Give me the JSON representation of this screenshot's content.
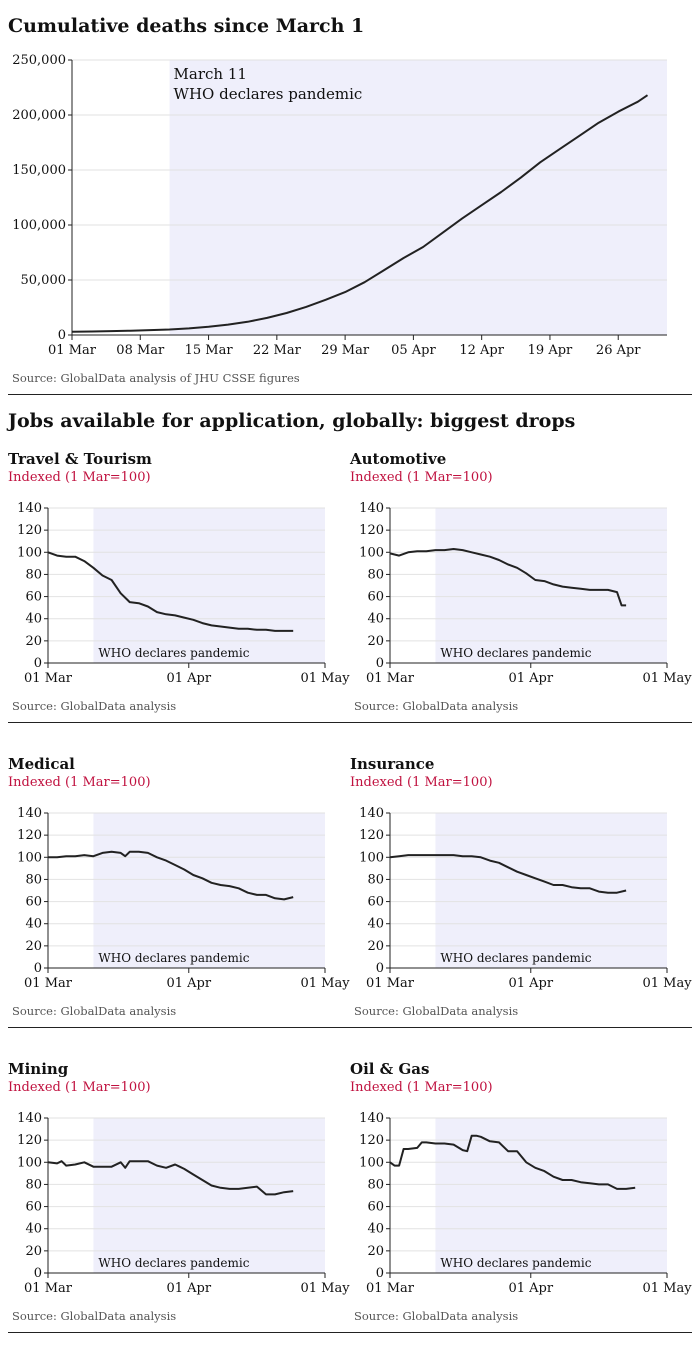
{
  "main_title": "Cumulative deaths since March 1",
  "main_source": "Source: GlobalData analysis of JHU CSSE figures",
  "jobs_title": "Jobs available for application, globally: biggest drops",
  "colors": {
    "shade": "#efeffb",
    "line": "#222222",
    "grid": "#e2e2e2",
    "caption": "#c0113f"
  },
  "chart_data": [
    {
      "type": "line",
      "title": "Cumulative deaths since March 1",
      "source": "Source: GlobalData analysis of JHU CSSE figures",
      "xlim": [
        0,
        61
      ],
      "ylim": [
        0,
        250000
      ],
      "grid": true,
      "x_ticks": [
        {
          "x": 0,
          "label": "01 Mar"
        },
        {
          "x": 7,
          "label": "08 Mar"
        },
        {
          "x": 14,
          "label": "15 Mar"
        },
        {
          "x": 21,
          "label": "22 Mar"
        },
        {
          "x": 28,
          "label": "29 Mar"
        },
        {
          "x": 35,
          "label": "05 Apr"
        },
        {
          "x": 42,
          "label": "12 Apr"
        },
        {
          "x": 49,
          "label": "19 Apr"
        },
        {
          "x": 56,
          "label": "26 Apr"
        }
      ],
      "y_ticks": [
        {
          "y": 0,
          "label": "0"
        },
        {
          "y": 50000,
          "label": "50,000"
        },
        {
          "y": 100000,
          "label": "100,000"
        },
        {
          "y": 150000,
          "label": "150,000"
        },
        {
          "y": 200000,
          "label": "200,000"
        },
        {
          "y": 250000,
          "label": "250,000"
        }
      ],
      "shade_from": 10,
      "annotation": {
        "line1": "March 11",
        "line2": "WHO declares pandemic"
      },
      "x": [
        0,
        2,
        4,
        6,
        8,
        10,
        12,
        14,
        16,
        18,
        20,
        22,
        24,
        26,
        28,
        30,
        32,
        34,
        36,
        38,
        40,
        42,
        44,
        46,
        48,
        50,
        52,
        54,
        56,
        58,
        59
      ],
      "values": [
        3000,
        3200,
        3500,
        3900,
        4500,
        5000,
        6000,
        7500,
        9500,
        12000,
        15500,
        20000,
        25500,
        32000,
        39000,
        48000,
        59000,
        70000,
        80000,
        93000,
        106000,
        118000,
        130000,
        143000,
        157000,
        169000,
        181000,
        193000,
        203000,
        212000,
        218000
      ]
    },
    {
      "type": "line",
      "title": "Travel & Tourism",
      "caption": "Indexed (1 Mar=100)",
      "source": "Source: GlobalData analysis",
      "ylim": [
        0,
        140
      ],
      "xlim": [
        0,
        61
      ],
      "shade_from": 10,
      "annotation": "WHO declares pandemic",
      "x_ticks": [
        {
          "x": 0,
          "label": "01 Mar"
        },
        {
          "x": 31,
          "label": "01 Apr"
        },
        {
          "x": 61,
          "label": "01 May"
        }
      ],
      "y_ticks": [
        {
          "y": 0,
          "label": "0"
        },
        {
          "y": 20,
          "label": "20"
        },
        {
          "y": 40,
          "label": "40"
        },
        {
          "y": 60,
          "label": "60"
        },
        {
          "y": 80,
          "label": "80"
        },
        {
          "y": 100,
          "label": "100"
        },
        {
          "y": 120,
          "label": "120"
        },
        {
          "y": 140,
          "label": "140"
        }
      ],
      "x": [
        0,
        2,
        4,
        6,
        8,
        10,
        12,
        14,
        16,
        18,
        20,
        22,
        24,
        26,
        28,
        30,
        32,
        34,
        36,
        38,
        40,
        42,
        44,
        46,
        48,
        50,
        52,
        54
      ],
      "values": [
        100,
        97,
        96,
        96,
        92,
        86,
        79,
        75,
        63,
        55,
        54,
        51,
        46,
        44,
        43,
        41,
        39,
        36,
        34,
        33,
        32,
        31,
        31,
        30,
        30,
        29,
        29,
        29
      ]
    },
    {
      "type": "line",
      "title": "Automotive",
      "caption": "Indexed (1 Mar=100)",
      "source": "Source: GlobalData analysis",
      "ylim": [
        0,
        140
      ],
      "xlim": [
        0,
        61
      ],
      "shade_from": 10,
      "annotation": "WHO declares pandemic",
      "x_ticks": [
        {
          "x": 0,
          "label": "01 Mar"
        },
        {
          "x": 31,
          "label": "01 Apr"
        },
        {
          "x": 61,
          "label": "01 May"
        }
      ],
      "y_ticks": [
        {
          "y": 0,
          "label": "0"
        },
        {
          "y": 20,
          "label": "20"
        },
        {
          "y": 40,
          "label": "40"
        },
        {
          "y": 60,
          "label": "60"
        },
        {
          "y": 80,
          "label": "80"
        },
        {
          "y": 100,
          "label": "100"
        },
        {
          "y": 120,
          "label": "120"
        },
        {
          "y": 140,
          "label": "140"
        }
      ],
      "x": [
        0,
        2,
        4,
        6,
        8,
        10,
        12,
        14,
        16,
        18,
        20,
        22,
        24,
        26,
        28,
        30,
        32,
        34,
        36,
        38,
        40,
        42,
        44,
        46,
        48,
        50,
        51,
        52
      ],
      "values": [
        99,
        97,
        100,
        101,
        101,
        102,
        102,
        103,
        102,
        100,
        98,
        96,
        93,
        89,
        86,
        81,
        75,
        74,
        71,
        69,
        68,
        67,
        66,
        66,
        66,
        64,
        52,
        52
      ]
    },
    {
      "type": "line",
      "title": "Medical",
      "caption": "Indexed (1 Mar=100)",
      "source": "Source: GlobalData analysis",
      "ylim": [
        0,
        140
      ],
      "xlim": [
        0,
        61
      ],
      "shade_from": 10,
      "annotation": "WHO declares pandemic",
      "x_ticks": [
        {
          "x": 0,
          "label": "01 Mar"
        },
        {
          "x": 31,
          "label": "01 Apr"
        },
        {
          "x": 61,
          "label": "01 May"
        }
      ],
      "y_ticks": [
        {
          "y": 0,
          "label": "0"
        },
        {
          "y": 20,
          "label": "20"
        },
        {
          "y": 40,
          "label": "40"
        },
        {
          "y": 60,
          "label": "60"
        },
        {
          "y": 80,
          "label": "80"
        },
        {
          "y": 100,
          "label": "100"
        },
        {
          "y": 120,
          "label": "120"
        },
        {
          "y": 140,
          "label": "140"
        }
      ],
      "x": [
        0,
        2,
        4,
        6,
        8,
        10,
        12,
        14,
        16,
        17,
        18,
        20,
        22,
        24,
        26,
        28,
        30,
        32,
        34,
        36,
        38,
        40,
        42,
        44,
        46,
        48,
        50,
        52,
        54
      ],
      "values": [
        100,
        100,
        101,
        101,
        102,
        101,
        104,
        105,
        104,
        101,
        105,
        105,
        104,
        100,
        97,
        93,
        89,
        84,
        81,
        77,
        75,
        74,
        72,
        68,
        66,
        66,
        63,
        62,
        64
      ]
    },
    {
      "type": "line",
      "title": "Insurance",
      "caption": "Indexed (1 Mar=100)",
      "source": "Source: GlobalData analysis",
      "ylim": [
        0,
        140
      ],
      "xlim": [
        0,
        61
      ],
      "shade_from": 10,
      "annotation": "WHO declares pandemic",
      "x_ticks": [
        {
          "x": 0,
          "label": "01 Mar"
        },
        {
          "x": 31,
          "label": "01 Apr"
        },
        {
          "x": 61,
          "label": "01 May"
        }
      ],
      "y_ticks": [
        {
          "y": 0,
          "label": "0"
        },
        {
          "y": 20,
          "label": "20"
        },
        {
          "y": 40,
          "label": "40"
        },
        {
          "y": 60,
          "label": "60"
        },
        {
          "y": 80,
          "label": "80"
        },
        {
          "y": 100,
          "label": "100"
        },
        {
          "y": 120,
          "label": "120"
        },
        {
          "y": 140,
          "label": "140"
        }
      ],
      "x": [
        0,
        2,
        4,
        6,
        8,
        10,
        12,
        14,
        16,
        18,
        20,
        22,
        24,
        26,
        28,
        30,
        32,
        34,
        36,
        38,
        40,
        42,
        44,
        46,
        48,
        50,
        52
      ],
      "values": [
        100,
        101,
        102,
        102,
        102,
        102,
        102,
        102,
        101,
        101,
        100,
        97,
        95,
        91,
        87,
        84,
        81,
        78,
        75,
        75,
        73,
        72,
        72,
        69,
        68,
        68,
        70
      ]
    },
    {
      "type": "line",
      "title": "Mining",
      "caption": "Indexed (1 Mar=100)",
      "source": "Source: GlobalData analysis",
      "ylim": [
        0,
        140
      ],
      "xlim": [
        0,
        61
      ],
      "shade_from": 10,
      "annotation": "WHO declares pandemic",
      "x_ticks": [
        {
          "x": 0,
          "label": "01 Mar"
        },
        {
          "x": 31,
          "label": "01 Apr"
        },
        {
          "x": 61,
          "label": "01 May"
        }
      ],
      "y_ticks": [
        {
          "y": 0,
          "label": "0"
        },
        {
          "y": 20,
          "label": "20"
        },
        {
          "y": 40,
          "label": "40"
        },
        {
          "y": 60,
          "label": "60"
        },
        {
          "y": 80,
          "label": "80"
        },
        {
          "y": 100,
          "label": "100"
        },
        {
          "y": 120,
          "label": "120"
        },
        {
          "y": 140,
          "label": "140"
        }
      ],
      "x": [
        0,
        2,
        3,
        4,
        6,
        8,
        10,
        12,
        14,
        16,
        17,
        18,
        20,
        22,
        24,
        26,
        28,
        29,
        30,
        32,
        34,
        36,
        38,
        40,
        42,
        44,
        46,
        48,
        50,
        52,
        54
      ],
      "values": [
        100,
        99,
        101,
        97,
        98,
        100,
        96,
        96,
        96,
        100,
        95,
        101,
        101,
        101,
        97,
        95,
        98,
        96,
        94,
        89,
        84,
        79,
        77,
        76,
        76,
        77,
        78,
        71,
        71,
        73,
        74
      ]
    },
    {
      "type": "line",
      "title": "Oil & Gas",
      "caption": "Indexed (1 Mar=100)",
      "source": "Source: GlobalData analysis",
      "ylim": [
        0,
        140
      ],
      "xlim": [
        0,
        61
      ],
      "shade_from": 10,
      "annotation": "WHO declares pandemic",
      "x_ticks": [
        {
          "x": 0,
          "label": "01 Mar"
        },
        {
          "x": 31,
          "label": "01 Apr"
        },
        {
          "x": 61,
          "label": "01 May"
        }
      ],
      "y_ticks": [
        {
          "y": 0,
          "label": "0"
        },
        {
          "y": 20,
          "label": "20"
        },
        {
          "y": 40,
          "label": "40"
        },
        {
          "y": 60,
          "label": "60"
        },
        {
          "y": 80,
          "label": "80"
        },
        {
          "y": 100,
          "label": "100"
        },
        {
          "y": 120,
          "label": "120"
        },
        {
          "y": 140,
          "label": "140"
        }
      ],
      "x": [
        0,
        1,
        2,
        3,
        4,
        6,
        7,
        8,
        10,
        12,
        14,
        16,
        17,
        18,
        19,
        20,
        22,
        24,
        26,
        28,
        30,
        32,
        34,
        36,
        38,
        40,
        42,
        44,
        46,
        48,
        50,
        52,
        54
      ],
      "values": [
        100,
        97,
        97,
        112,
        112,
        113,
        118,
        118,
        117,
        117,
        116,
        111,
        110,
        124,
        124,
        123,
        119,
        118,
        110,
        110,
        100,
        95,
        92,
        87,
        84,
        84,
        82,
        81,
        80,
        80,
        76,
        76,
        77
      ]
    }
  ]
}
